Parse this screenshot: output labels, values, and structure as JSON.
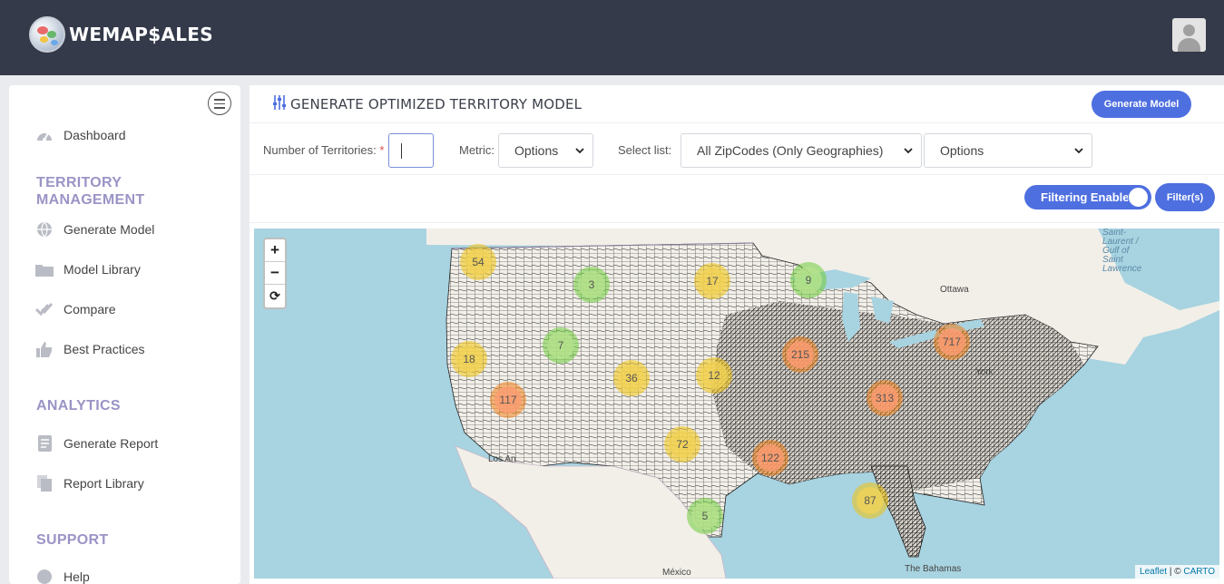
{
  "brand": {
    "logo_text": "WEMAP$ALES"
  },
  "header": {
    "avatar_icon": "user-avatar-icon"
  },
  "sidebar": {
    "items_top": [
      {
        "label": "Dashboard",
        "icon": "dashboard-gauge-icon"
      }
    ],
    "territory_section": {
      "title": "TERRITORY MANAGEMENT",
      "items": [
        {
          "label": "Generate Model",
          "icon": "globe-icon"
        },
        {
          "label": "Model Library",
          "icon": "folder-icon"
        },
        {
          "label": "Compare",
          "icon": "double-check-icon"
        },
        {
          "label": "Best Practices",
          "icon": "thumbs-up-icon"
        }
      ]
    },
    "analytics_section": {
      "title": "ANALYTICS",
      "items": [
        {
          "label": "Generate Report",
          "icon": "report-icon"
        },
        {
          "label": "Report Library",
          "icon": "copy-icon"
        }
      ]
    },
    "support_section": {
      "title": "SUPPORT",
      "items": [
        {
          "label": "Help",
          "icon": "help-icon"
        }
      ]
    }
  },
  "page": {
    "title": "GENERATE OPTIMIZED TERRITORY MODEL",
    "generate_button": "Generate Model"
  },
  "form": {
    "territories_label": "Number of Territories:",
    "required_mark": "*",
    "territories_value": "",
    "metric_label": "Metric:",
    "metric_value": "Options",
    "select_list_label": "Select list:",
    "select_list_value": "All ZipCodes (Only Geographies)",
    "options_value": "Options"
  },
  "filters": {
    "toggle_label": "Filtering Enabled",
    "filter_button": "Filter(s)"
  },
  "map": {
    "zoom_in": "+",
    "zoom_out": "−",
    "reset": "⟳",
    "attribution_leaflet": "Leaflet",
    "attribution_sep": " | © ",
    "attribution_carto": "CARTO",
    "places": {
      "ottawa": "Ottawa",
      "york": "York",
      "los_angeles": "Los An",
      "mexico": "México",
      "bahamas": "The Bahamas",
      "st_lawrence": "Saint-\nLaurent /\nGulf of\nSaint\nLawrence"
    },
    "clusters": [
      {
        "count": "54",
        "level": "yellow"
      },
      {
        "count": "3",
        "level": "green"
      },
      {
        "count": "17",
        "level": "yellow"
      },
      {
        "count": "9",
        "level": "green"
      },
      {
        "count": "7",
        "level": "green"
      },
      {
        "count": "18",
        "level": "yellow"
      },
      {
        "count": "215",
        "level": "orange"
      },
      {
        "count": "717",
        "level": "orange"
      },
      {
        "count": "36",
        "level": "yellow"
      },
      {
        "count": "12",
        "level": "yellow"
      },
      {
        "count": "117",
        "level": "orange"
      },
      {
        "count": "313",
        "level": "orange"
      },
      {
        "count": "72",
        "level": "yellow"
      },
      {
        "count": "122",
        "level": "orange"
      },
      {
        "count": "87",
        "level": "yellow"
      },
      {
        "count": "5",
        "level": "green"
      }
    ]
  },
  "colors": {
    "topbar": "#343a4a",
    "accent": "#4e6fe0",
    "section_heading": "#9a94c6",
    "water": "#a8d3e0",
    "land": "#f2efe9"
  }
}
